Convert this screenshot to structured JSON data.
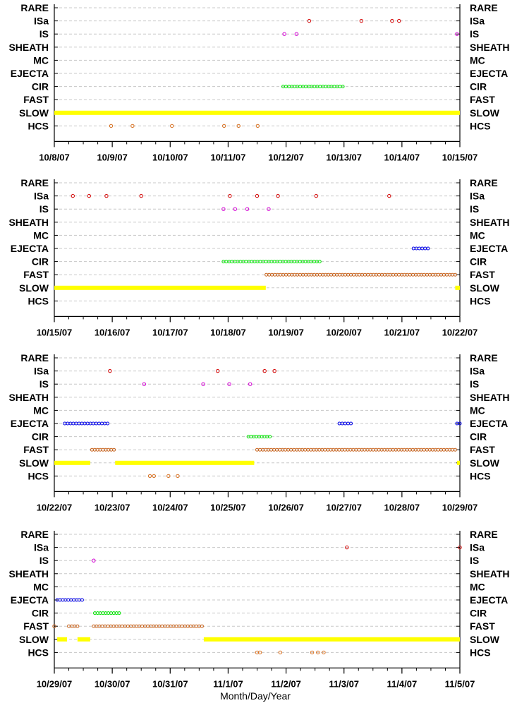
{
  "chart_data": {
    "type": "scatter",
    "xlabel": "Month/Day/Year",
    "categories": [
      "RARE",
      "ISa",
      "IS",
      "SHEATH",
      "MC",
      "EJECTA",
      "CIR",
      "FAST",
      "SLOW",
      "HCS"
    ],
    "colors": {
      "SLOW": "#ffff00",
      "FAST": "#c8641e",
      "CIR": "#00e400",
      "EJECTA": "#0000e6",
      "MC": "#000000",
      "SHEATH": "#000000",
      "IS": "#d400d4",
      "ISa": "#d40000",
      "RARE": "#000000",
      "HCS": "#d87020"
    },
    "grid": "horizontal dashed",
    "panels": [
      {
        "xlim": [
          "10/8/07",
          "10/15/07"
        ],
        "ticks": [
          "10/8/07",
          "10/9/07",
          "10/10/07",
          "10/11/07",
          "10/12/07",
          "10/13/07",
          "10/14/07",
          "10/15/07"
        ],
        "series": [
          {
            "category": "SLOW",
            "segments": [
              [
                0.0,
                7.0
              ]
            ]
          },
          {
            "category": "CIR",
            "segments": [
              [
                3.95,
                4.98
              ]
            ]
          },
          {
            "category": "HCS",
            "points": [
              0.98,
              1.35,
              2.03,
              2.93,
              3.18,
              3.51
            ]
          },
          {
            "category": "IS",
            "points": [
              3.97,
              4.18,
              6.95
            ]
          },
          {
            "category": "ISa",
            "points": [
              4.4,
              5.3,
              5.83,
              5.95
            ]
          }
        ]
      },
      {
        "xlim": [
          "10/15/07",
          "10/22/07"
        ],
        "ticks": [
          "10/15/07",
          "10/16/07",
          "10/17/07",
          "10/18/07",
          "10/19/07",
          "10/20/07",
          "10/21/07",
          "10/22/07"
        ],
        "series": [
          {
            "category": "SLOW",
            "segments": [
              [
                0.0,
                3.65
              ],
              [
                6.92,
                7.0
              ]
            ]
          },
          {
            "category": "FAST",
            "segments": [
              [
                3.66,
                6.92
              ]
            ]
          },
          {
            "category": "CIR",
            "segments": [
              [
                2.92,
                4.58
              ]
            ]
          },
          {
            "category": "EJECTA",
            "segments": [
              [
                6.2,
                6.45
              ]
            ]
          },
          {
            "category": "IS",
            "points": [
              2.92,
              3.12,
              3.33,
              3.7
            ]
          },
          {
            "category": "ISa",
            "points": [
              0.32,
              0.6,
              0.9,
              1.5,
              3.03,
              3.5,
              3.86,
              4.52,
              5.78
            ]
          }
        ]
      },
      {
        "xlim": [
          "10/22/07",
          "10/29/07"
        ],
        "ticks": [
          "10/22/07",
          "10/23/07",
          "10/24/07",
          "10/25/07",
          "10/26/07",
          "10/27/07",
          "10/28/07",
          "10/29/07"
        ],
        "series": [
          {
            "category": "SLOW",
            "segments": [
              [
                0.0,
                0.62
              ],
              [
                1.05,
                3.45
              ],
              [
                6.95,
                7.0
              ]
            ]
          },
          {
            "category": "FAST",
            "segments": [
              [
                0.65,
                1.03
              ],
              [
                3.5,
                6.92
              ]
            ]
          },
          {
            "category": "CIR",
            "segments": [
              [
                3.35,
                3.72
              ]
            ]
          },
          {
            "category": "EJECTA",
            "segments": [
              [
                0.18,
                0.92
              ],
              [
                4.92,
                5.12
              ],
              [
                6.95,
                7.0
              ]
            ]
          },
          {
            "category": "HCS",
            "points": [
              1.65,
              1.72,
              1.97,
              2.13
            ]
          },
          {
            "category": "IS",
            "points": [
              1.55,
              2.57,
              3.02,
              3.38
            ]
          },
          {
            "category": "ISa",
            "points": [
              0.96,
              2.82,
              3.63,
              3.8
            ]
          }
        ]
      },
      {
        "xlim": [
          "10/29/07",
          "11/5/07"
        ],
        "ticks": [
          "10/29/07",
          "10/30/07",
          "10/31/07",
          "11/1/07",
          "11/2/07",
          "11/3/07",
          "11/4/07",
          "11/5/07"
        ],
        "series": [
          {
            "category": "SLOW",
            "segments": [
              [
                0.05,
                0.22
              ],
              [
                0.4,
                0.62
              ],
              [
                2.58,
                7.0
              ]
            ]
          },
          {
            "category": "FAST",
            "segments": [
              [
                0.25,
                0.4
              ],
              [
                0.68,
                2.55
              ]
            ]
          },
          {
            "category": "FAST",
            "points": [
              0.0
            ]
          },
          {
            "category": "CIR",
            "segments": [
              [
                0.7,
                1.12
              ]
            ]
          },
          {
            "category": "EJECTA",
            "segments": [
              [
                0.05,
                0.48
              ]
            ]
          },
          {
            "category": "HCS",
            "points": [
              3.5,
              3.55,
              3.9,
              4.45,
              4.55,
              4.65
            ]
          },
          {
            "category": "IS",
            "points": [
              0.68
            ]
          },
          {
            "category": "ISa",
            "points": [
              5.05,
              7.0
            ]
          }
        ]
      }
    ]
  }
}
